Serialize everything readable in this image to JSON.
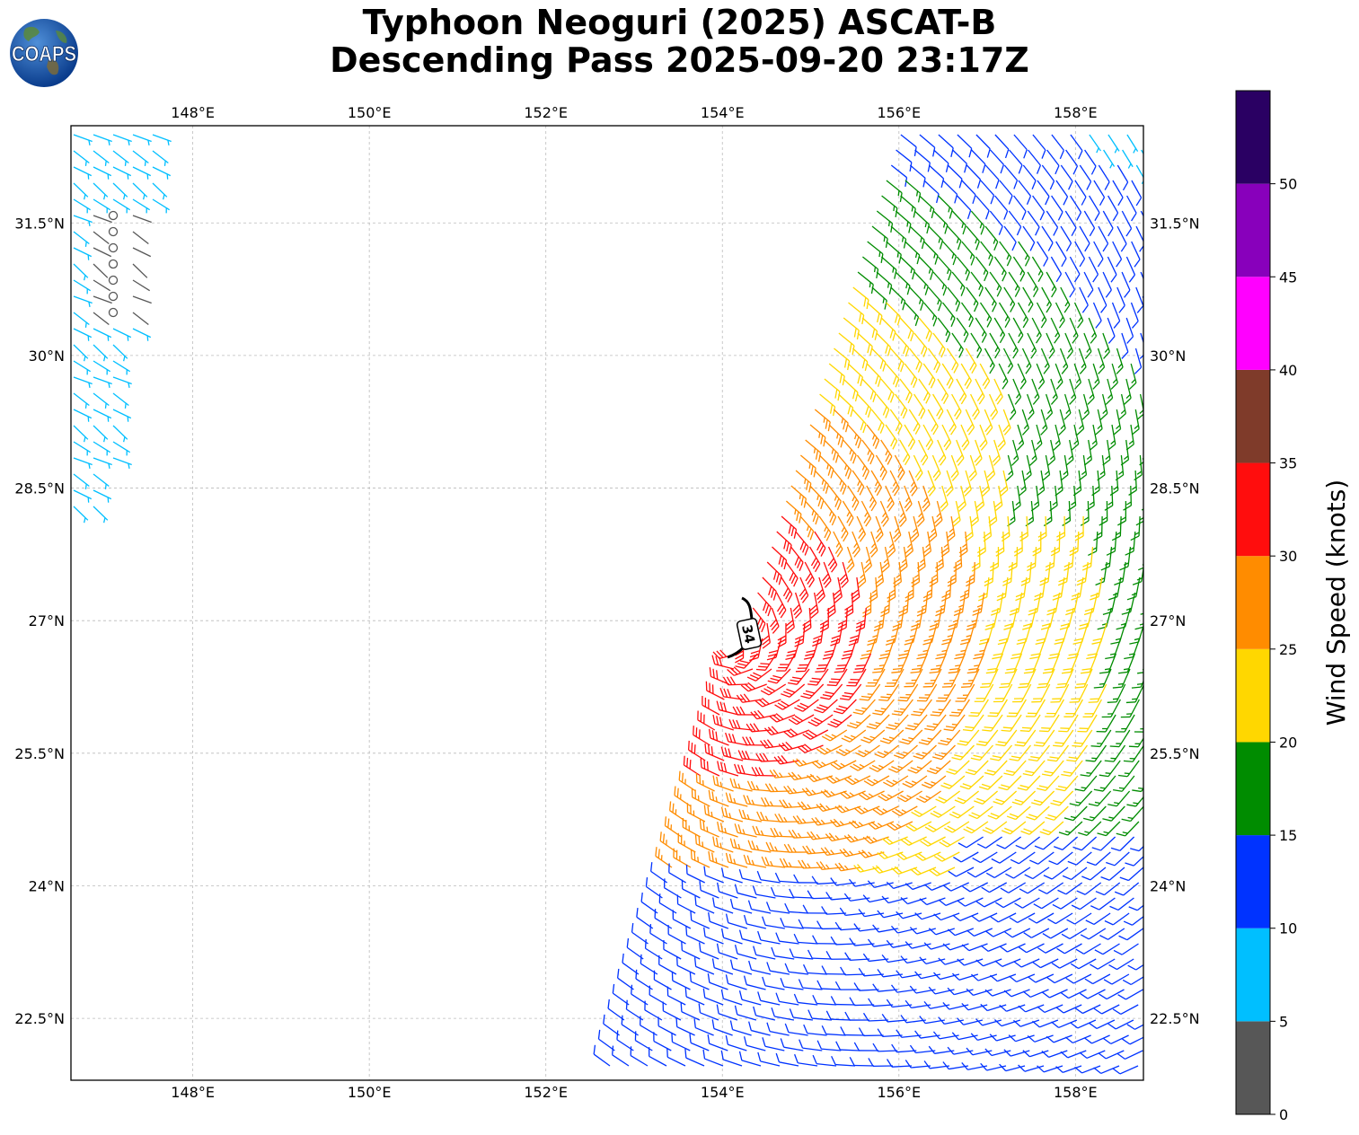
{
  "title": {
    "line1": "Typhoon Neoguri (2025) ASCAT-B",
    "line2": "Descending Pass 2025-09-20 23:17Z"
  },
  "logo": {
    "text": "COAPS"
  },
  "map": {
    "lon_range": [
      146.62,
      158.77
    ],
    "lat_range": [
      21.8,
      32.6
    ],
    "lon_ticks": [
      {
        "value": 148,
        "label": "148°E"
      },
      {
        "value": 150,
        "label": "150°E"
      },
      {
        "value": 152,
        "label": "152°E"
      },
      {
        "value": 154,
        "label": "154°E"
      },
      {
        "value": 156,
        "label": "156°E"
      },
      {
        "value": 158,
        "label": "158°E"
      }
    ],
    "lat_ticks": [
      {
        "value": 31.5,
        "label": "31.5°N"
      },
      {
        "value": 30,
        "label": "30°N"
      },
      {
        "value": 28.5,
        "label": "28.5°N"
      },
      {
        "value": 27,
        "label": "27°N"
      },
      {
        "value": 25.5,
        "label": "25.5°N"
      },
      {
        "value": 24,
        "label": "24°N"
      },
      {
        "value": 22.5,
        "label": "22.5°N"
      }
    ],
    "grid": true,
    "wind_radius_label": "34"
  },
  "colorbar": {
    "title": "Wind Speed (knots)",
    "ticks": [
      "0",
      "5",
      "10",
      "15",
      "20",
      "25",
      "30",
      "35",
      "40",
      "45",
      "50"
    ],
    "bins": [
      {
        "min": 0,
        "max": 5,
        "color": "#575757"
      },
      {
        "min": 5,
        "max": 10,
        "color": "#00bfff"
      },
      {
        "min": 10,
        "max": 15,
        "color": "#0033ff"
      },
      {
        "min": 15,
        "max": 20,
        "color": "#008c00"
      },
      {
        "min": 20,
        "max": 25,
        "color": "#ffd700"
      },
      {
        "min": 25,
        "max": 30,
        "color": "#ff8c00"
      },
      {
        "min": 30,
        "max": 35,
        "color": "#ff0d0d"
      },
      {
        "min": 35,
        "max": 40,
        "color": "#7f3b2a"
      },
      {
        "min": 40,
        "max": 45,
        "color": "#ff00ff"
      },
      {
        "min": 45,
        "max": 50,
        "color": "#8800bb"
      },
      {
        "min": 50,
        "max": 55,
        "color": "#2a0063"
      }
    ]
  }
}
